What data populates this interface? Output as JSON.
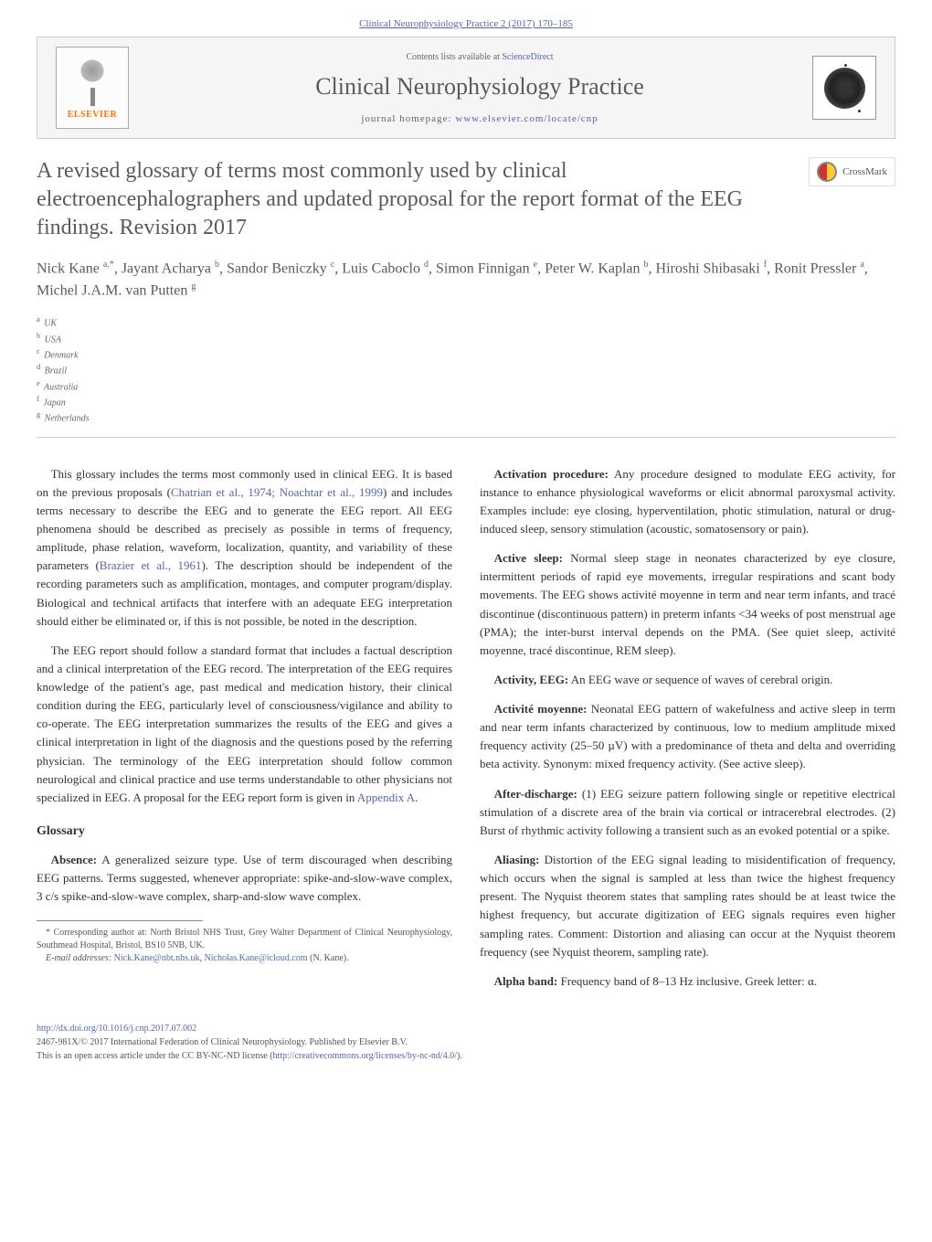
{
  "journal_ref": "Clinical Neurophysiology Practice 2 (2017) 170–185",
  "contents_prefix": "Contents lists available at ",
  "contents_link": "ScienceDirect",
  "journal_title": "Clinical Neurophysiology Practice",
  "homepage_prefix": "journal homepage: ",
  "homepage_url": "www.elsevier.com/locate/cnp",
  "elsevier_label": "ELSEVIER",
  "crossmark_label": "CrossMark",
  "article_title": "A revised glossary of terms most commonly used by clinical electroencephalographers and updated proposal for the report format of the EEG findings. Revision 2017",
  "authors_html": "Nick Kane <sup>a,*</sup>, Jayant Acharya <sup>b</sup>, Sandor Beniczky <sup>c</sup>, Luis Caboclo <sup>d</sup>, Simon Finnigan <sup>e</sup>, Peter W. Kaplan <sup>b</sup>, Hiroshi Shibasaki <sup>f</sup>, Ronit Pressler <sup>a</sup>, Michel J.A.M. van Putten <sup>g</sup>",
  "affiliations": [
    {
      "sup": "a",
      "text": "UK"
    },
    {
      "sup": "b",
      "text": "USA"
    },
    {
      "sup": "c",
      "text": "Denmark"
    },
    {
      "sup": "d",
      "text": "Brazil"
    },
    {
      "sup": "e",
      "text": "Australia"
    },
    {
      "sup": "f",
      "text": "Japan"
    },
    {
      "sup": "g",
      "text": "Netherlands"
    }
  ],
  "intro_p1": "This glossary includes the terms most commonly used in clinical EEG. It is based on the previous proposals (<span class='ref-link'>Chatrian et al., 1974; Noachtar et al., 1999</span>) and includes terms necessary to describe the EEG and to generate the EEG report. All EEG phenomena should be described as precisely as possible in terms of frequency, amplitude, phase relation, waveform, localization, quantity, and variability of these parameters (<span class='ref-link'>Brazier et al., 1961</span>). The description should be independent of the recording parameters such as amplification, montages, and computer program/display. Biological and technical artifacts that interfere with an adequate EEG interpretation should either be eliminated or, if this is not possible, be noted in the description.",
  "intro_p2": "The EEG report should follow a standard format that includes a factual description and a clinical interpretation of the EEG record. The interpretation of the EEG requires knowledge of the patient's age, past medical and medication history, their clinical condition during the EEG, particularly level of consciousness/vigilance and ability to co-operate. The EEG interpretation summarizes the results of the EEG and gives a clinical interpretation in light of the diagnosis and the questions posed by the referring physician. The terminology of the EEG interpretation should follow common neurological and clinical practice and use terms understandable to other physicians not specialized in EEG. A proposal for the EEG report form is given in <span class='ref-link'>Appendix A</span>.",
  "glossary_heading": "Glossary",
  "absence_def": "<span class='term'>Absence:</span> A generalized seizure type. Use of term discouraged when describing EEG patterns. Terms suggested, whenever appropriate: spike-and-slow-wave complex, 3 c/s spike-and-slow-wave complex, sharp-and-slow wave complex.",
  "corr_footnote": "<span class='ast'>*</span> Corresponding author at: North Bristol NHS Trust, Grey Walter Department of Clinical Neurophysiology, Southmead Hospital, Bristol, BS10 5NB, UK.",
  "email_footnote": "<i>E-mail addresses:</i> <span class='ref-link'>Nick.Kane@nbt.nhs.uk</span>, <span class='ref-link'>Nicholas.Kane@icloud.com</span> (N. Kane).",
  "activation_def": "<span class='term'>Activation procedure:</span> Any procedure designed to modulate EEG activity, for instance to enhance physiological waveforms or elicit abnormal paroxysmal activity. Examples include: eye closing, hyperventilation, photic stimulation, natural or drug-induced sleep, sensory stimulation (acoustic, somatosensory or pain).",
  "active_sleep_def": "<span class='term'>Active sleep:</span> Normal sleep stage in neonates characterized by eye closure, intermittent periods of rapid eye movements, irregular respirations and scant body movements. The EEG shows activité moyenne in term and near term infants, and tracé discontinue (discontinuous pattern) in preterm infants &lt;34 weeks of post menstrual age (PMA); the inter-burst interval depends on the PMA. (See quiet sleep, activité moyenne, tracé discontinue, REM sleep).",
  "activity_def": "<span class='term'>Activity, EEG:</span> An EEG wave or sequence of waves of cerebral origin.",
  "activite_def": "<span class='term'>Activité moyenne:</span> Neonatal EEG pattern of wakefulness and active sleep in term and near term infants characterized by continuous, low to medium amplitude mixed frequency activity (25–50 µV) with a predominance of theta and delta and overriding beta activity. Synonym: mixed frequency activity. (See active sleep).",
  "after_discharge_def": "<span class='term'>After-discharge:</span> (1) EEG seizure pattern following single or repetitive electrical stimulation of a discrete area of the brain via cortical or intracerebral electrodes. (2) Burst of rhythmic activity following a transient such as an evoked potential or a spike.",
  "aliasing_def": "<span class='term'>Aliasing:</span> Distortion of the EEG signal leading to misidentification of frequency, which occurs when the signal is sampled at less than twice the highest frequency present. The Nyquist theorem states that sampling rates should be at least twice the highest frequency, but accurate digitization of EEG signals requires even higher sampling rates. Comment: Distortion and aliasing can occur at the Nyquist theorem frequency (see Nyquist theorem, sampling rate).",
  "alpha_band_def": "<span class='term'>Alpha band:</span> Frequency band of 8–13 Hz inclusive. Greek letter: <span class='greek'>α</span>.",
  "footer_doi": "http://dx.doi.org/10.1016/j.cnp.2017.07.002",
  "footer_issn": "2467-981X/© 2017 International Federation of Clinical Neurophysiology. Published by Elsevier B.V.",
  "footer_license": "This is an open access article under the CC BY-NC-ND license (<a href='#'>http://creativecommons.org/licenses/by-nc-nd/4.0/</a>)."
}
